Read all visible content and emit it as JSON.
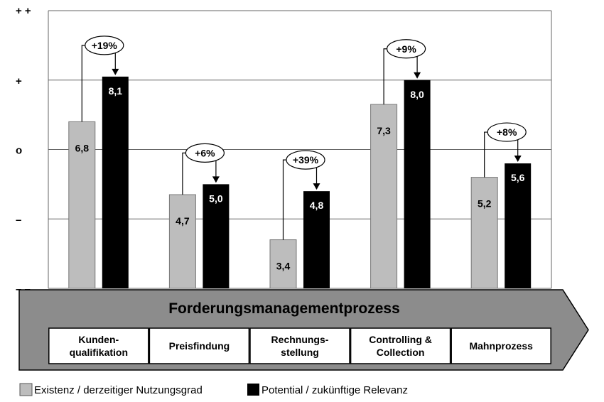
{
  "chart_data": {
    "type": "bar",
    "ylim": [
      2,
      10
    ],
    "y_tick_labels": [
      "+ +",
      "+",
      "o",
      "–",
      "– –"
    ],
    "categories": [
      "Kunden-\nqualifikation",
      "Preisfindung",
      "Rechnungs-\nstellung",
      "Controlling &\nCollection",
      "Mahnprozess"
    ],
    "series": [
      {
        "name": "Existenz / derzeitiger Nutzungsgrad",
        "color": "#bdbdbd",
        "values": [
          6.8,
          4.7,
          3.4,
          7.3,
          5.2
        ],
        "labels": [
          "6,8",
          "4,7",
          "3,4",
          "7,3",
          "5,2"
        ]
      },
      {
        "name": "Potential / zukünftige Relevanz",
        "color": "#000000",
        "values": [
          8.1,
          5.0,
          4.8,
          8.0,
          5.6
        ],
        "labels": [
          "8,1",
          "5,0",
          "4,8",
          "8,0",
          "5,6"
        ]
      }
    ],
    "annotations": [
      "+19%",
      "+6%",
      "+39%",
      "+9%",
      "+8%"
    ],
    "process_title": "Forderungsmanagementprozess",
    "grid": true
  }
}
